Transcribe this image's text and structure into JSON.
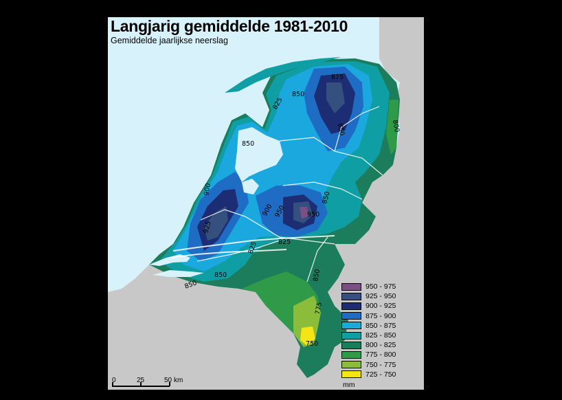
{
  "map": {
    "title": "Langjarig gemiddelde 1981-2010",
    "subtitle": "Gemiddelde jaarlijkse neerslag",
    "isoline_labels": [
      "875",
      "850",
      "825",
      "800",
      "850",
      "850",
      "900",
      "950",
      "850",
      "925",
      "900",
      "950",
      "825",
      "850",
      "825",
      "850",
      "850",
      "775",
      "750"
    ],
    "colors": {
      "water": "#d8f2fb",
      "outside_land": "#c8c8c8"
    }
  },
  "legend": {
    "items": [
      {
        "label": "950 - 975",
        "color": "#7b4f86"
      },
      {
        "label": "925 - 950",
        "color": "#35507e"
      },
      {
        "label": "900 - 925",
        "color": "#1c2d74"
      },
      {
        "label": "875 - 900",
        "color": "#1f6cc4"
      },
      {
        "label": "850 - 875",
        "color": "#1aa8df"
      },
      {
        "label": "825 - 850",
        "color": "#0f9ea3"
      },
      {
        "label": "800 - 825",
        "color": "#1b7d5c"
      },
      {
        "label": "775 - 800",
        "color": "#2f9b48"
      },
      {
        "label": "750 - 775",
        "color": "#8cbd3a"
      },
      {
        "label": "725 - 750",
        "color": "#f5e416"
      }
    ],
    "unit": "mm"
  },
  "scalebar": {
    "ticks": [
      "0",
      "25",
      "50"
    ],
    "unit": "km"
  }
}
